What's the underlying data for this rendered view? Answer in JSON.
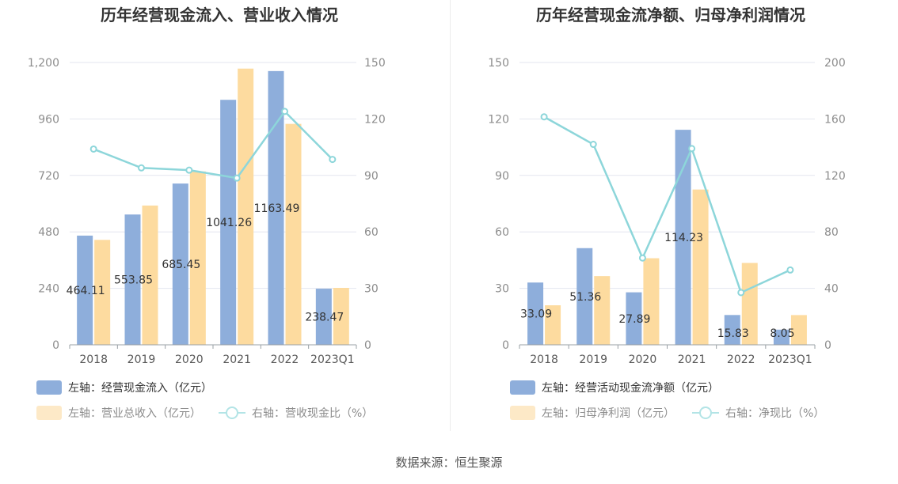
{
  "chart_data": [
    {
      "type": "bar",
      "title": "历年经营现金流入、营业收入情况",
      "categories": [
        "2018",
        "2019",
        "2020",
        "2021",
        "2022",
        "2023Q1"
      ],
      "y_left": {
        "min": 0,
        "max": 1200,
        "ticks": [
          "0",
          "240",
          "480",
          "720",
          "960",
          "1,200"
        ]
      },
      "y_right": {
        "min": 0,
        "max": 150,
        "ticks": [
          "0",
          "30",
          "60",
          "90",
          "120",
          "150"
        ]
      },
      "series": [
        {
          "name": "左轴：经营现金流入（亿元）",
          "kind": "bar",
          "axis": "left",
          "color": "#8eaedb",
          "values": [
            464.11,
            553.85,
            685.45,
            1041.26,
            1163.49,
            238.47
          ],
          "labels": [
            "464.11",
            "553.85",
            "685.45",
            "1041.26",
            "1163.49",
            "238.47"
          ]
        },
        {
          "name": "左轴：营业总收入（亿元）",
          "kind": "bar",
          "axis": "left",
          "color": "#fddb9f",
          "values": [
            446,
            592,
            737,
            1174,
            939,
            242
          ]
        },
        {
          "name": "右轴：营收现金比（%）",
          "kind": "line",
          "axis": "right",
          "color": "#8dd6da",
          "values": [
            104,
            94,
            92.8,
            88.6,
            124,
            98.5
          ]
        }
      ],
      "legend_position": "bottom-left",
      "grid": true
    },
    {
      "type": "bar",
      "title": "历年经营现金流净额、归母净利润情况",
      "categories": [
        "2018",
        "2019",
        "2020",
        "2021",
        "2022",
        "2023Q1"
      ],
      "y_left": {
        "min": 0,
        "max": 150,
        "ticks": [
          "0",
          "30",
          "60",
          "90",
          "120",
          "150"
        ]
      },
      "y_right": {
        "min": 0,
        "max": 200,
        "ticks": [
          "0",
          "40",
          "80",
          "120",
          "160",
          "200"
        ]
      },
      "series": [
        {
          "name": "左轴：经营活动现金流净额（亿元）",
          "kind": "bar",
          "axis": "left",
          "color": "#8eaedb",
          "values": [
            33.09,
            51.36,
            27.89,
            114.23,
            15.83,
            8.05
          ],
          "labels": [
            "33.09",
            "51.36",
            "27.89",
            "114.23",
            "15.83",
            "8.05"
          ]
        },
        {
          "name": "左轴：归母净利润（亿元）",
          "kind": "bar",
          "axis": "left",
          "color": "#fddb9f",
          "values": [
            21,
            36.5,
            46,
            82.5,
            43.5,
            15.8
          ]
        },
        {
          "name": "右轴：净现比（%）",
          "kind": "line",
          "axis": "right",
          "color": "#8dd6da",
          "values": [
            161.5,
            142,
            61.5,
            139,
            37,
            53
          ]
        }
      ],
      "legend_position": "bottom-left",
      "grid": true
    }
  ],
  "source_text": "数据来源：恒生聚源"
}
